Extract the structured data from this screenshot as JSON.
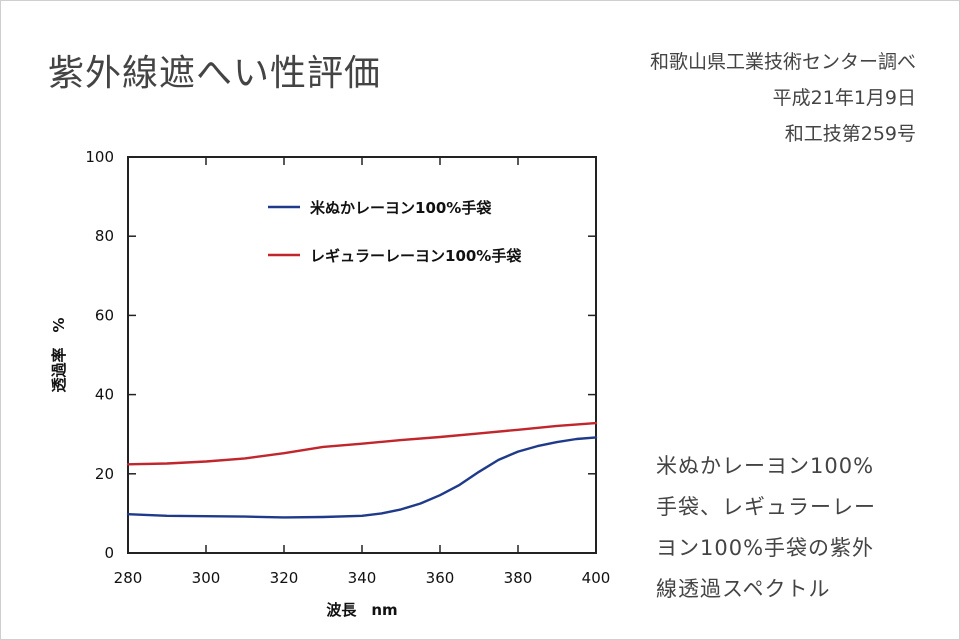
{
  "header": {
    "title": "紫外線遮へい性評価",
    "source_lines": [
      "和歌山県工業技術センター調べ",
      "平成21年1月9日",
      "和工技第259号"
    ]
  },
  "caption": {
    "lines": [
      "米ぬかレーヨン100%",
      "手袋、レギュラーレー",
      "ヨン100%手袋の紫外",
      "線透過スペクトル"
    ]
  },
  "chart_data": {
    "type": "line",
    "xlabel": "波長　nm",
    "ylabel": "透過率　%",
    "xlim": [
      280,
      400
    ],
    "ylim": [
      0,
      100
    ],
    "xticks": [
      280,
      300,
      320,
      340,
      360,
      380,
      400
    ],
    "yticks": [
      0,
      20,
      40,
      60,
      80,
      100
    ],
    "legend_position": "top-left",
    "series": [
      {
        "name": "米ぬかレーヨン100%手袋",
        "color": "#1f3a8a",
        "x": [
          280,
          290,
          300,
          310,
          320,
          330,
          340,
          345,
          350,
          355,
          360,
          365,
          370,
          375,
          380,
          385,
          390,
          395,
          400
        ],
        "y": [
          9.8,
          9.4,
          9.3,
          9.2,
          9.0,
          9.1,
          9.4,
          10.0,
          11.0,
          12.5,
          14.6,
          17.2,
          20.5,
          23.5,
          25.6,
          27.0,
          28.0,
          28.8,
          29.2
        ]
      },
      {
        "name": "レギュラーレーヨン100%手袋",
        "color": "#c0262c",
        "x": [
          280,
          290,
          300,
          310,
          320,
          330,
          340,
          350,
          360,
          370,
          380,
          390,
          400
        ],
        "y": [
          22.4,
          22.6,
          23.1,
          23.9,
          25.2,
          26.8,
          27.6,
          28.5,
          29.3,
          30.2,
          31.1,
          32.1,
          32.8
        ]
      }
    ]
  }
}
